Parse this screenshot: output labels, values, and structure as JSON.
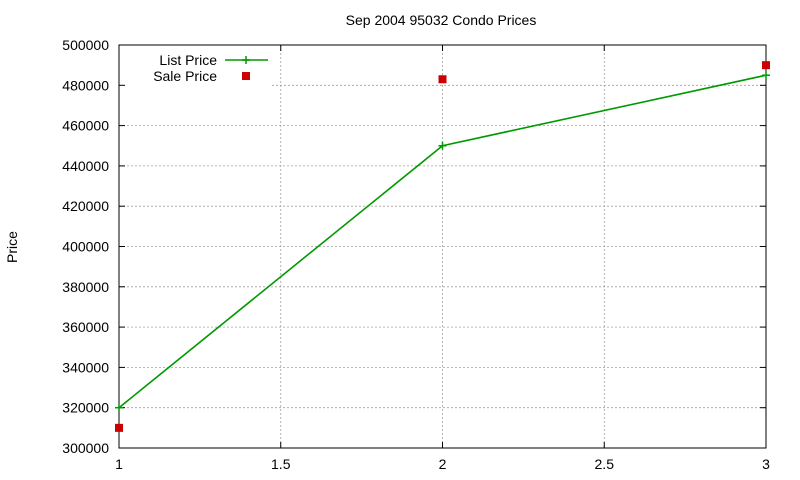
{
  "chart_data": {
    "type": "line",
    "title": "Sep 2004 95032 Condo Prices",
    "xlabel": "",
    "ylabel": "Price",
    "xlim": [
      1,
      3
    ],
    "ylim": [
      300000,
      500000
    ],
    "x_ticks": [
      1,
      1.5,
      2,
      2.5,
      3
    ],
    "x_tick_labels": [
      "1",
      "1.5",
      "2",
      "2.5",
      "3"
    ],
    "y_ticks": [
      300000,
      320000,
      340000,
      360000,
      380000,
      400000,
      420000,
      440000,
      460000,
      480000,
      500000
    ],
    "y_tick_labels": [
      "300000",
      "320000",
      "340000",
      "360000",
      "380000",
      "400000",
      "420000",
      "440000",
      "460000",
      "480000",
      "500000"
    ],
    "grid": true,
    "legend_position": "top-left",
    "series": [
      {
        "name": "List Price",
        "style": "linespoints",
        "marker": "plus",
        "color": "#009900",
        "x": [
          1,
          2,
          3
        ],
        "y": [
          320000,
          450000,
          485000
        ]
      },
      {
        "name": "Sale Price",
        "style": "points",
        "marker": "square",
        "color": "#cc0000",
        "x": [
          1,
          2,
          3
        ],
        "y": [
          310000,
          483000,
          490000
        ]
      }
    ]
  }
}
